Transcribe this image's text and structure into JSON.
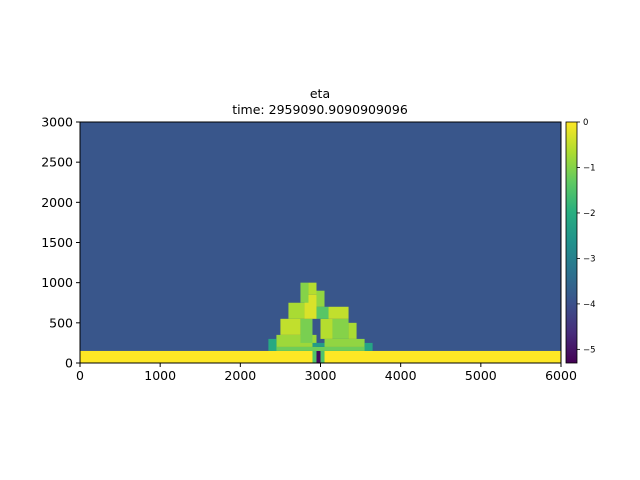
{
  "chart_data": {
    "type": "heatmap",
    "title": "eta",
    "subtitle": "time: 2959090.9090909096",
    "xlabel": "",
    "ylabel": "",
    "xlim": [
      0,
      6000
    ],
    "ylim": [
      0,
      3000
    ],
    "x_ticks": [
      "0",
      "1000",
      "2000",
      "3000",
      "4000",
      "5000",
      "6000"
    ],
    "y_ticks": [
      "0",
      "500",
      "1000",
      "1500",
      "2000",
      "2500",
      "3000"
    ],
    "colorbar": {
      "range": [
        -5.3,
        0
      ],
      "ticks": [
        "0",
        "−1",
        "−2",
        "−3",
        "−4",
        "−5"
      ],
      "colormap": "viridis"
    },
    "grid": false,
    "cell_size": [
      100,
      100
    ],
    "background_value": -3.9,
    "regions": [
      {
        "x": [
          0,
          6000
        ],
        "y": [
          0,
          150
        ],
        "value": 0
      },
      {
        "x": [
          2900,
          3050
        ],
        "y": [
          0,
          150
        ],
        "value": -1.5
      },
      {
        "x": [
          2950,
          3000
        ],
        "y": [
          0,
          150
        ],
        "value": -5.2
      },
      {
        "x": [
          2400,
          3600
        ],
        "y": [
          150,
          200
        ],
        "value": -1.2
      },
      {
        "x": [
          2450,
          2950
        ],
        "y": [
          200,
          350
        ],
        "value": -0.8
      },
      {
        "x": [
          3050,
          3550
        ],
        "y": [
          200,
          300
        ],
        "value": -0.9
      },
      {
        "x": [
          2900,
          3050
        ],
        "y": [
          200,
          250
        ],
        "value": -2.4
      },
      {
        "x": [
          2500,
          2750
        ],
        "y": [
          350,
          550
        ],
        "value": -0.5
      },
      {
        "x": [
          2750,
          2900
        ],
        "y": [
          250,
          550
        ],
        "value": -1.1
      },
      {
        "x": [
          3000,
          3150
        ],
        "y": [
          300,
          550
        ],
        "value": -0.6
      },
      {
        "x": [
          3150,
          3350
        ],
        "y": [
          300,
          550
        ],
        "value": -1.0
      },
      {
        "x": [
          3350,
          3450
        ],
        "y": [
          300,
          500
        ],
        "value": -0.7
      },
      {
        "x": [
          2600,
          2800
        ],
        "y": [
          550,
          750
        ],
        "value": -0.7
      },
      {
        "x": [
          2800,
          2950
        ],
        "y": [
          550,
          850
        ],
        "value": -0.3
      },
      {
        "x": [
          2950,
          3100
        ],
        "y": [
          550,
          700
        ],
        "value": -1.4
      },
      {
        "x": [
          3100,
          3350
        ],
        "y": [
          550,
          700
        ],
        "value": -0.5
      },
      {
        "x": [
          2750,
          2850
        ],
        "y": [
          750,
          1000
        ],
        "value": -1.0
      },
      {
        "x": [
          2850,
          2950
        ],
        "y": [
          850,
          1000
        ],
        "value": -0.6
      },
      {
        "x": [
          2950,
          3050
        ],
        "y": [
          700,
          900
        ],
        "value": -0.9
      },
      {
        "x": [
          2350,
          2450
        ],
        "y": [
          150,
          300
        ],
        "value": -2.1
      },
      {
        "x": [
          3550,
          3650
        ],
        "y": [
          150,
          250
        ],
        "value": -2.2
      }
    ]
  }
}
